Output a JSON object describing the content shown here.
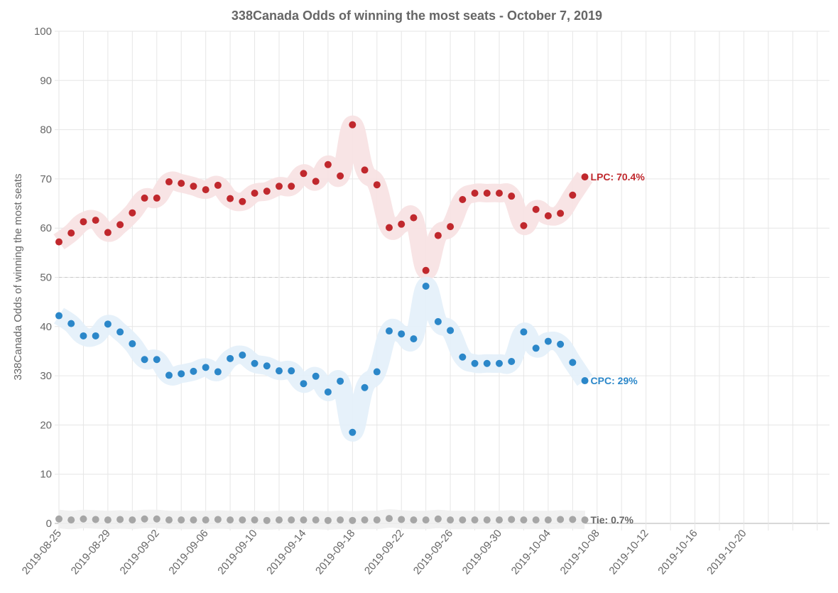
{
  "chart_data": {
    "type": "line",
    "title": "338Canada Odds of winning the most seats - October 7, 2019",
    "xlabel": "",
    "ylabel": "338Canada Odds of winning the most seats",
    "ylim": [
      0,
      100
    ],
    "yticks": [
      0,
      10,
      20,
      30,
      40,
      50,
      60,
      70,
      80,
      90,
      100
    ],
    "xlim": [
      "2019-08-25",
      "2019-10-27"
    ],
    "xtick_labels": [
      "2019-08-25",
      "2019-08-29",
      "2019-09-02",
      "2019-09-06",
      "2019-09-10",
      "2019-09-14",
      "2019-09-18",
      "2019-09-22",
      "2019-09-26",
      "2019-09-30",
      "2019-10-04",
      "2019-10-08",
      "2019-10-12",
      "2019-10-16",
      "2019-10-20"
    ],
    "grid": true,
    "reference_line": {
      "y": 50,
      "style": "dashed",
      "until": "2019-10-21"
    },
    "x": [
      "2019-08-25",
      "2019-08-26",
      "2019-08-27",
      "2019-08-28",
      "2019-08-29",
      "2019-08-30",
      "2019-08-31",
      "2019-09-01",
      "2019-09-02",
      "2019-09-03",
      "2019-09-04",
      "2019-09-05",
      "2019-09-06",
      "2019-09-07",
      "2019-09-08",
      "2019-09-09",
      "2019-09-10",
      "2019-09-11",
      "2019-09-12",
      "2019-09-13",
      "2019-09-14",
      "2019-09-15",
      "2019-09-16",
      "2019-09-17",
      "2019-09-18",
      "2019-09-19",
      "2019-09-20",
      "2019-09-21",
      "2019-09-22",
      "2019-09-23",
      "2019-09-24",
      "2019-09-25",
      "2019-09-26",
      "2019-09-27",
      "2019-09-28",
      "2019-09-29",
      "2019-09-30",
      "2019-10-01",
      "2019-10-02",
      "2019-10-03",
      "2019-10-04",
      "2019-10-05",
      "2019-10-06",
      "2019-10-07"
    ],
    "series": [
      {
        "name": "LPC",
        "color": "#c0282d",
        "band_color": "#f7e1e2",
        "end_label": "LPC: 70.4%",
        "values": [
          57.2,
          59.0,
          61.3,
          61.6,
          59.1,
          60.7,
          63.1,
          66.1,
          66.1,
          69.4,
          69.1,
          68.5,
          67.8,
          68.7,
          66.0,
          65.4,
          67.1,
          67.5,
          68.5,
          68.5,
          71.1,
          69.5,
          72.9,
          70.6,
          81.0,
          71.8,
          68.8,
          60.1,
          60.8,
          62.1,
          51.4,
          58.5,
          60.3,
          65.8,
          67.1,
          67.1,
          67.1,
          66.5,
          60.5,
          63.8,
          62.5,
          63.0,
          66.7,
          70.4
        ]
      },
      {
        "name": "CPC",
        "color": "#2b87c9",
        "band_color": "#e3eff9",
        "end_label": "CPC: 29%",
        "values": [
          42.2,
          40.6,
          38.1,
          38.1,
          40.5,
          38.9,
          36.5,
          33.3,
          33.3,
          30.1,
          30.4,
          30.9,
          31.7,
          30.8,
          33.5,
          34.2,
          32.5,
          32.0,
          31.0,
          31.0,
          28.4,
          29.9,
          26.7,
          28.9,
          18.5,
          27.6,
          30.8,
          39.1,
          38.5,
          37.5,
          48.2,
          41.0,
          39.2,
          33.8,
          32.5,
          32.5,
          32.5,
          32.9,
          38.9,
          35.6,
          37.0,
          36.4,
          32.7,
          29.0
        ]
      },
      {
        "name": "Tie",
        "color": "#a6a6a6",
        "band_color": "#f0f0f0",
        "end_label": "Tie: 0.7%",
        "values": [
          0.9,
          0.7,
          0.9,
          0.8,
          0.7,
          0.8,
          0.7,
          0.9,
          0.9,
          0.7,
          0.7,
          0.7,
          0.7,
          0.8,
          0.7,
          0.7,
          0.7,
          0.6,
          0.7,
          0.7,
          0.7,
          0.7,
          0.6,
          0.7,
          0.6,
          0.7,
          0.7,
          1.0,
          0.8,
          0.7,
          0.7,
          0.9,
          0.7,
          0.7,
          0.7,
          0.7,
          0.7,
          0.8,
          0.7,
          0.7,
          0.7,
          0.8,
          0.8,
          0.7
        ]
      }
    ]
  }
}
